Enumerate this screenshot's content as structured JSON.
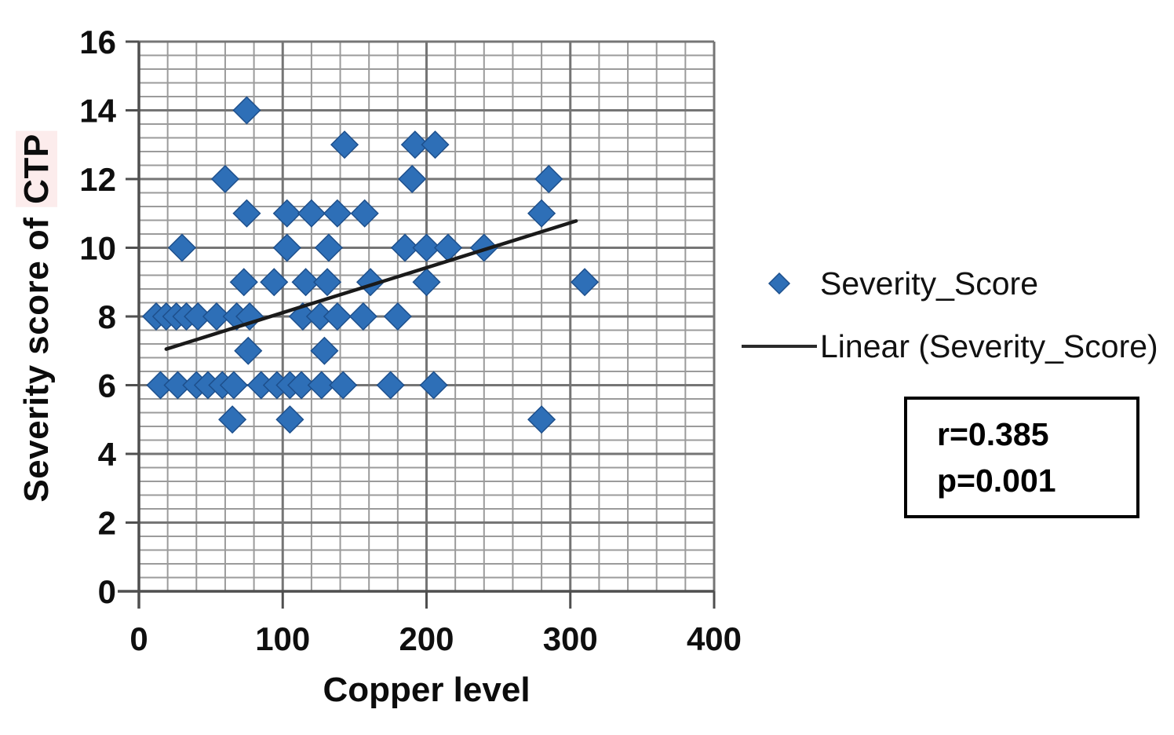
{
  "figure": {
    "background": "#ffffff"
  },
  "chart_data": {
    "type": "scatter",
    "xlabel": "Copper level",
    "ylabel": "Severity score of CTP",
    "ylabel_prefix": "Severity score of ",
    "ylabel_highlight": "CTP",
    "xlim": [
      0,
      400
    ],
    "ylim": [
      0,
      16
    ],
    "x_major": 100,
    "x_minor": 20,
    "y_major": 2,
    "y_minor": 0.4,
    "x_ticks": [
      0,
      100,
      200,
      300,
      400
    ],
    "y_ticks": [
      0,
      2,
      4,
      6,
      8,
      10,
      12,
      14,
      16
    ],
    "grid": "major+minor",
    "legend_position": "right",
    "series": [
      {
        "name": "Severity_Score",
        "marker": "diamond",
        "points": [
          [
            75,
            14
          ],
          [
            143,
            13
          ],
          [
            192,
            13
          ],
          [
            206,
            13
          ],
          [
            60,
            12
          ],
          [
            190,
            12
          ],
          [
            285,
            12
          ],
          [
            75,
            11
          ],
          [
            103,
            11
          ],
          [
            120,
            11
          ],
          [
            138,
            11
          ],
          [
            157,
            11
          ],
          [
            280,
            11
          ],
          [
            30,
            10
          ],
          [
            103,
            10
          ],
          [
            132,
            10
          ],
          [
            185,
            10
          ],
          [
            200,
            10
          ],
          [
            215,
            10
          ],
          [
            240,
            10
          ],
          [
            73,
            9
          ],
          [
            94,
            9
          ],
          [
            116,
            9
          ],
          [
            131,
            9
          ],
          [
            161,
            9
          ],
          [
            200,
            9
          ],
          [
            310,
            9
          ],
          [
            12,
            8
          ],
          [
            19,
            8
          ],
          [
            26,
            8
          ],
          [
            33,
            8
          ],
          [
            41,
            8
          ],
          [
            54,
            8
          ],
          [
            68,
            8
          ],
          [
            77,
            8
          ],
          [
            114,
            8
          ],
          [
            126,
            8
          ],
          [
            138,
            8
          ],
          [
            156,
            8
          ],
          [
            180,
            8
          ],
          [
            76,
            7
          ],
          [
            129,
            7
          ],
          [
            15,
            6
          ],
          [
            27,
            6
          ],
          [
            40,
            6
          ],
          [
            48,
            6
          ],
          [
            58,
            6
          ],
          [
            66,
            6
          ],
          [
            85,
            6
          ],
          [
            96,
            6
          ],
          [
            105,
            6
          ],
          [
            113,
            6
          ],
          [
            127,
            6
          ],
          [
            142,
            6
          ],
          [
            175,
            6
          ],
          [
            205,
            6
          ],
          [
            65,
            5
          ],
          [
            105,
            5
          ],
          [
            280,
            5
          ]
        ]
      }
    ],
    "trendline": {
      "name": "Linear (Severity_Score)",
      "x_start": 19,
      "y_start": 7.05,
      "x_end": 304,
      "y_end": 10.78
    },
    "annotation": {
      "r": "r=0.385",
      "p": "p=0.001"
    },
    "colors": {
      "marker_fill": "#2e6fb7",
      "marker_stroke": "#1d4f8c",
      "grid_minor": "#9b9b9b",
      "grid_major": "#757575",
      "axis": "#4f4f4f",
      "trend": "#1a1a1a"
    }
  },
  "legend": {
    "items": [
      {
        "label": "Severity_Score",
        "swatch": "diamond-icon"
      },
      {
        "label": "Linear (Severity_Score)",
        "swatch": "line-icon"
      }
    ]
  },
  "stats_box": {
    "r": "r=0.385",
    "p": "p=0.001"
  }
}
